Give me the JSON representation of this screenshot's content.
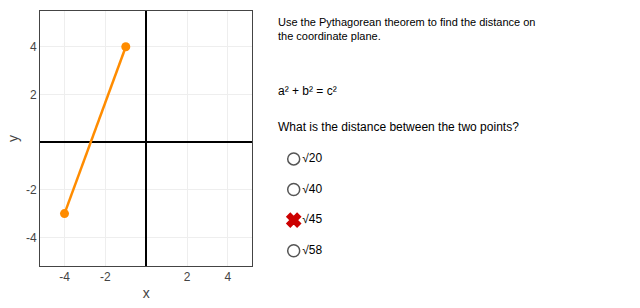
{
  "chart_data": {
    "type": "line",
    "title": "Use the Pythagorean theorem to find the distance on\nthe coordinate plane.",
    "annotations": [
      "a² + b² = c²",
      "What is the distance between the two points?"
    ],
    "x_label": "x",
    "y_label": "y",
    "x": [
      -1,
      -4
    ],
    "values": [
      4,
      -3
    ],
    "color": "#FF8C00",
    "marker": "circle",
    "line_style": "solid",
    "xlim": [
      -5.2,
      5.2
    ],
    "ylim": [
      -5.2,
      5.5
    ],
    "xticks": [
      -4,
      -2,
      2,
      4
    ],
    "yticks": [
      -4,
      -2,
      2,
      4
    ],
    "grid": true,
    "options": [
      {
        "label": "√20",
        "marker": "circle",
        "color": "#555555"
      },
      {
        "label": "√40",
        "marker": "circle",
        "color": "#555555"
      },
      {
        "label": "√45",
        "marker": "cross",
        "color": "#cc0000"
      },
      {
        "label": "√58",
        "marker": "circle",
        "color": "#555555"
      }
    ]
  }
}
